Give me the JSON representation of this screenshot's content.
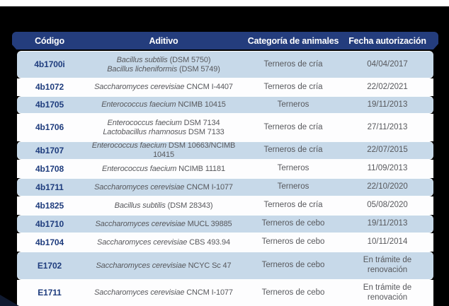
{
  "colors": {
    "header_bg": "#243d7d",
    "code_text": "#1e3c7d",
    "row_blue": "#c7d9e9",
    "row_white": "#fdfdfe",
    "body_text": "#57585c"
  },
  "table": {
    "columns": [
      "Código",
      "Aditivo",
      "Categoría de animales",
      "Fecha autorización"
    ],
    "rows": [
      {
        "code": "4b1700i",
        "aditivo": [
          [
            {
              "t": "Bacillus subtilis",
              "i": true
            },
            {
              "t": " (DSM 5750)",
              "i": false
            }
          ],
          [
            {
              "t": "Bacillus licheniformis",
              "i": true
            },
            {
              "t": " (DSM 5749)",
              "i": false
            }
          ]
        ],
        "category": "Terneros de cría",
        "date": "04/04/2017"
      },
      {
        "code": "4b1072",
        "aditivo": [
          [
            {
              "t": "Saccharomyces cerevisiae",
              "i": true
            },
            {
              "t": " CNCM I-4407",
              "i": false
            }
          ]
        ],
        "category": "Terneros de cría",
        "date": "22/02/2021"
      },
      {
        "code": "4b1705",
        "aditivo": [
          [
            {
              "t": "Enterococcus faecium",
              "i": true
            },
            {
              "t": " NCIMB 10415",
              "i": false
            }
          ]
        ],
        "category": "Terneros",
        "date": "19/11/2013"
      },
      {
        "code": "4b1706",
        "aditivo": [
          [
            {
              "t": "Enterococcus faecium",
              "i": true
            },
            {
              "t": " DSM 7134",
              "i": false
            }
          ],
          [
            {
              "t": "Lactobacillus rhamnosus",
              "i": true
            },
            {
              "t": " DSM 7133",
              "i": false
            }
          ]
        ],
        "category": "Terneros de cría",
        "date": "27/11/2013"
      },
      {
        "code": "4b1707",
        "aditivo": [
          [
            {
              "t": "Enterococcus faecium",
              "i": true
            },
            {
              "t": " DSM 10663/NCIMB 10415",
              "i": false
            }
          ]
        ],
        "category": "Terneros de cría",
        "date": "22/07/2015"
      },
      {
        "code": "4b1708",
        "aditivo": [
          [
            {
              "t": "Enterococcus faecium",
              "i": true
            },
            {
              "t": " NCIMB 11181",
              "i": false
            }
          ]
        ],
        "category": "Terneros",
        "date": "11/09/2013"
      },
      {
        "code": "4b1711",
        "aditivo": [
          [
            {
              "t": "Saccharomyces cerevisiae",
              "i": true
            },
            {
              "t": " CNCM I-1077",
              "i": false
            }
          ]
        ],
        "category": "Terneros",
        "date": "22/10/2020"
      },
      {
        "code": "4b1825",
        "aditivo": [
          [
            {
              "t": "Bacillus subtilis",
              "i": true
            },
            {
              "t": " (DSM 28343)",
              "i": false
            }
          ]
        ],
        "category": "Terneros de cría",
        "date": "05/08/2020"
      },
      {
        "code": "4b1710",
        "aditivo": [
          [
            {
              "t": "Saccharomyces cerevisiae",
              "i": true
            },
            {
              "t": " MUCL 39885",
              "i": false
            }
          ]
        ],
        "category": "Terneros de cebo",
        "date": "19/11/2013"
      },
      {
        "code": "4b1704",
        "aditivo": [
          [
            {
              "t": "Saccharomyces cerevisiae",
              "i": true
            },
            {
              "t": " CBS 493.94",
              "i": false
            }
          ]
        ],
        "category": "Terneros de cebo",
        "date": "10/11/2014"
      },
      {
        "code": "E1702",
        "aditivo": [
          [
            {
              "t": "Saccharomyces cerevisiae",
              "i": true
            },
            {
              "t": " NCYC Sc 47",
              "i": false
            }
          ]
        ],
        "category": "Terneros de cebo",
        "date": "En trámite de renovación"
      },
      {
        "code": "E1711",
        "aditivo": [
          [
            {
              "t": "Saccharomyces cerevisiae",
              "i": true
            },
            {
              "t": " CNCM I-1077",
              "i": false
            }
          ]
        ],
        "category": "Terneros de cebo",
        "date": "En trámite de renovación"
      }
    ]
  }
}
